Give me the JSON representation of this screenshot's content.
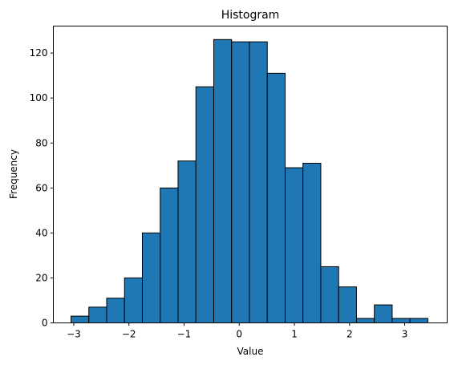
{
  "chart_data": {
    "type": "bar",
    "title": "Histogram",
    "xlabel": "Value",
    "ylabel": "Frequency",
    "bin_start": -3.05,
    "bin_width": 0.3235,
    "values": [
      3,
      7,
      11,
      20,
      40,
      60,
      72,
      105,
      126,
      125,
      125,
      111,
      69,
      71,
      25,
      16,
      2,
      8,
      2,
      2
    ],
    "xlim": [
      -3.37,
      3.77
    ],
    "ylim": [
      0,
      132
    ],
    "xticks": [
      -3,
      -2,
      -1,
      0,
      1,
      2,
      3
    ],
    "xtick_labels": [
      "−3",
      "−2",
      "−1",
      "0",
      "1",
      "2",
      "3"
    ],
    "yticks": [
      0,
      20,
      40,
      60,
      80,
      100,
      120
    ],
    "ytick_labels": [
      "0",
      "20",
      "40",
      "60",
      "80",
      "100",
      "120"
    ],
    "grid": false,
    "legend": "none",
    "bar_color": "#1f77b4",
    "edge_color": "#000000"
  }
}
